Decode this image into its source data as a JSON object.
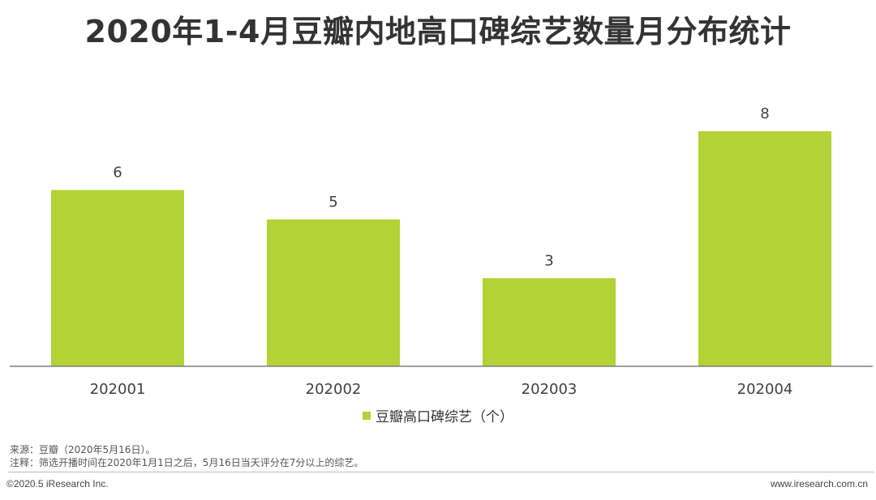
{
  "title": "2020年1-4月豆瓣内地高口碑综艺数量月分布统计",
  "chart_data": {
    "type": "bar",
    "title": "2020年1-4月豆瓣内地高口碑综艺数量月分布统计",
    "categories": [
      "202001",
      "202002",
      "202003",
      "202004"
    ],
    "series": [
      {
        "name": "豆瓣高口碑综艺（个）",
        "values": [
          6,
          5,
          3,
          8
        ]
      }
    ],
    "ylim": [
      0,
      9.6
    ],
    "grid": false,
    "legend_position": "bottom",
    "colors": {
      "bar": "#b2d235",
      "axis": "#7f7f7f",
      "label": "#404040"
    }
  },
  "notes": {
    "source": "来源：豆瓣（2020年5月16日）。",
    "remark": "注释：筛选开播时间在2020年1月1日之后，5月16日当天评分在7分以上的综艺。"
  },
  "footer": {
    "copyright": "©2020.5 iResearch Inc.",
    "website": "www.iresearch.com.cn"
  }
}
